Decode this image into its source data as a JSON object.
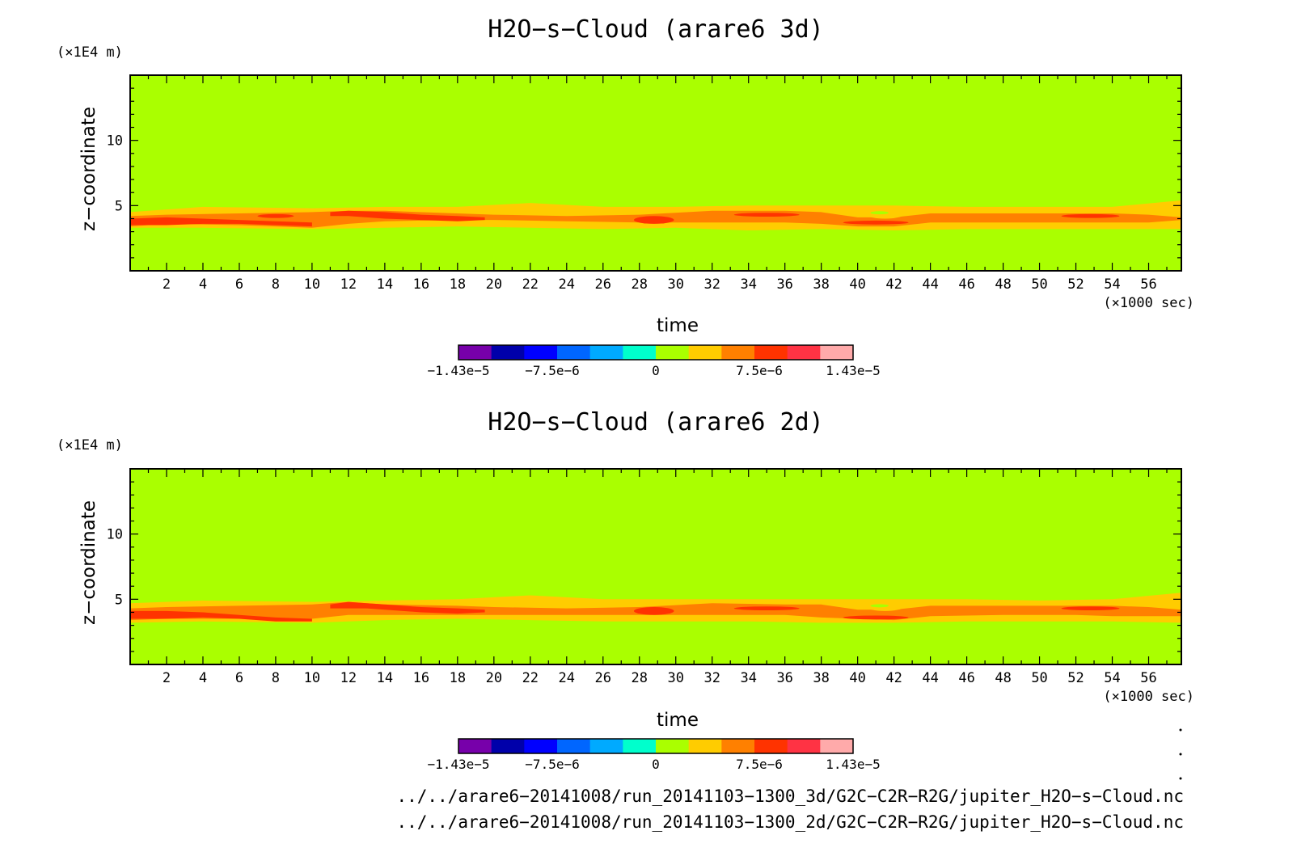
{
  "chart_data": [
    {
      "type": "heatmap",
      "title": "H2O−s−Cloud (arare6 3d)",
      "xlabel": "time",
      "ylabel": "z−coordinate",
      "x_unit": "(×1000 sec)",
      "y_unit": "(×1E4 m)",
      "xlim": [
        0,
        57.8
      ],
      "ylim": [
        0,
        15
      ],
      "xticks": [
        "2",
        "4",
        "6",
        "8",
        "10",
        "12",
        "14",
        "16",
        "18",
        "20",
        "22",
        "24",
        "26",
        "28",
        "30",
        "32",
        "34",
        "36",
        "38",
        "40",
        "42",
        "44",
        "46",
        "48",
        "50",
        "52",
        "54",
        "56"
      ],
      "yticks": [
        "5",
        "10"
      ],
      "background_level": 0,
      "bands": [
        {
          "level": 1,
          "color": "#ffcc00",
          "x": [
            0,
            4,
            10,
            14,
            18,
            22,
            26,
            30,
            34,
            38,
            42,
            46,
            50,
            54,
            57.8
          ],
          "bottom": [
            3.3,
            3.3,
            3.2,
            3.3,
            3.4,
            3.3,
            3.2,
            3.3,
            3.1,
            3.2,
            3.1,
            3.2,
            3.2,
            3.2,
            3.2
          ],
          "top": [
            4.5,
            4.9,
            4.8,
            4.9,
            4.9,
            5.2,
            4.9,
            4.9,
            5.0,
            5.0,
            5.0,
            4.9,
            4.9,
            4.9,
            5.4
          ]
        },
        {
          "level": 2,
          "color": "#ff8000",
          "x": [
            0,
            2,
            6,
            10,
            12,
            14,
            18,
            20,
            24,
            28,
            32,
            36,
            38,
            40,
            42,
            44,
            48,
            52,
            54,
            56,
            57.8
          ],
          "bottom": [
            3.4,
            3.6,
            3.5,
            3.3,
            3.6,
            3.8,
            3.9,
            3.9,
            3.8,
            3.7,
            3.7,
            3.7,
            3.6,
            3.4,
            3.4,
            3.7,
            3.7,
            3.7,
            3.7,
            3.7,
            3.9
          ],
          "top": [
            4.2,
            4.3,
            4.4,
            4.5,
            4.6,
            4.6,
            4.4,
            4.3,
            4.2,
            4.3,
            4.6,
            4.6,
            4.5,
            4.1,
            4.1,
            4.4,
            4.4,
            4.4,
            4.4,
            4.3,
            4.1
          ]
        },
        {
          "level": 3,
          "color": "#ff3300",
          "x": [
            0,
            2,
            4,
            6,
            8,
            10
          ],
          "bottom": [
            3.5,
            3.5,
            3.6,
            3.6,
            3.5,
            3.4
          ],
          "top": [
            4.0,
            4.1,
            4.0,
            3.9,
            3.8,
            3.7
          ]
        },
        {
          "level": 3,
          "color": "#ff3300",
          "x": [
            11,
            12,
            14,
            16,
            18,
            19.5
          ],
          "bottom": [
            4.2,
            4.2,
            4.0,
            3.9,
            3.8,
            3.9
          ],
          "top": [
            4.5,
            4.6,
            4.5,
            4.3,
            4.2,
            4.1
          ]
        }
      ],
      "spots": [
        {
          "level": 3,
          "color": "#ff3300",
          "x": 8,
          "y": 4.2,
          "rx": 1.0,
          "ry": 0.15
        },
        {
          "level": 3,
          "color": "#ff3300",
          "x": 28.8,
          "y": 3.9,
          "rx": 1.1,
          "ry": 0.3
        },
        {
          "level": 3,
          "color": "#ff3300",
          "x": 35.0,
          "y": 4.3,
          "rx": 1.8,
          "ry": 0.15
        },
        {
          "level": 3,
          "color": "#ff3300",
          "x": 41.0,
          "y": 3.7,
          "rx": 1.8,
          "ry": 0.15
        },
        {
          "level": 3,
          "color": "#ff3300",
          "x": 52.8,
          "y": 4.2,
          "rx": 1.6,
          "ry": 0.15
        },
        {
          "level": 1,
          "color": "#ffcc00",
          "x": 41.5,
          "y": 4.3,
          "rx": 1.0,
          "ry": 0.3
        },
        {
          "level": 0,
          "color": "#aaff00",
          "x": 41.2,
          "y": 4.45,
          "rx": 0.5,
          "ry": 0.12
        }
      ]
    },
    {
      "type": "heatmap",
      "title": "H2O−s−Cloud (arare6 2d)",
      "xlabel": "time",
      "ylabel": "z−coordinate",
      "x_unit": "(×1000 sec)",
      "y_unit": "(×1E4 m)",
      "xlim": [
        0,
        57.8
      ],
      "ylim": [
        0,
        15
      ],
      "xticks": [
        "2",
        "4",
        "6",
        "8",
        "10",
        "12",
        "14",
        "16",
        "18",
        "20",
        "22",
        "24",
        "26",
        "28",
        "30",
        "32",
        "34",
        "36",
        "38",
        "40",
        "42",
        "44",
        "46",
        "48",
        "50",
        "52",
        "54",
        "56"
      ],
      "yticks": [
        "5",
        "10"
      ],
      "background_level": 0,
      "bands": [
        {
          "level": 1,
          "color": "#ffcc00",
          "x": [
            0,
            4,
            10,
            14,
            18,
            22,
            26,
            30,
            34,
            38,
            42,
            46,
            50,
            54,
            57.8
          ],
          "bottom": [
            3.2,
            3.3,
            3.2,
            3.4,
            3.5,
            3.4,
            3.3,
            3.3,
            3.3,
            3.2,
            3.2,
            3.3,
            3.3,
            3.3,
            3.2
          ],
          "top": [
            4.7,
            4.9,
            4.8,
            4.9,
            5.0,
            5.3,
            5.0,
            5.0,
            5.0,
            5.0,
            5.0,
            5.0,
            4.9,
            5.0,
            5.5
          ]
        },
        {
          "level": 2,
          "color": "#ff8000",
          "x": [
            0,
            2,
            6,
            10,
            12,
            14,
            18,
            20,
            24,
            28,
            32,
            36,
            38,
            40,
            42,
            44,
            48,
            52,
            54,
            56,
            57.8
          ],
          "bottom": [
            3.4,
            3.5,
            3.5,
            3.5,
            3.8,
            3.8,
            3.8,
            3.8,
            3.8,
            3.8,
            3.8,
            3.8,
            3.6,
            3.5,
            3.4,
            3.7,
            3.8,
            3.8,
            3.7,
            3.7,
            3.7
          ],
          "top": [
            4.3,
            4.4,
            4.5,
            4.6,
            4.8,
            4.6,
            4.5,
            4.4,
            4.3,
            4.4,
            4.7,
            4.6,
            4.6,
            4.2,
            4.2,
            4.5,
            4.5,
            4.5,
            4.5,
            4.4,
            4.2
          ]
        },
        {
          "level": 3,
          "color": "#ff3300",
          "x": [
            0,
            2,
            4,
            6,
            8,
            10
          ],
          "bottom": [
            3.5,
            3.5,
            3.6,
            3.5,
            3.3,
            3.3
          ],
          "top": [
            4.1,
            4.1,
            4.0,
            3.8,
            3.6,
            3.5
          ]
        },
        {
          "level": 3,
          "color": "#ff3300",
          "x": [
            11,
            12,
            13,
            14,
            16,
            18,
            19.5
          ],
          "bottom": [
            4.3,
            4.3,
            4.3,
            4.2,
            4.0,
            3.9,
            4.0
          ],
          "top": [
            4.6,
            4.8,
            4.7,
            4.6,
            4.4,
            4.3,
            4.2
          ]
        }
      ],
      "spots": [
        {
          "level": 3,
          "color": "#ff3300",
          "x": 28.8,
          "y": 4.1,
          "rx": 1.1,
          "ry": 0.3
        },
        {
          "level": 3,
          "color": "#ff3300",
          "x": 35.0,
          "y": 4.3,
          "rx": 1.8,
          "ry": 0.15
        },
        {
          "level": 3,
          "color": "#ff3300",
          "x": 41.0,
          "y": 3.6,
          "rx": 1.8,
          "ry": 0.15
        },
        {
          "level": 3,
          "color": "#ff3300",
          "x": 52.8,
          "y": 4.3,
          "rx": 1.6,
          "ry": 0.15
        },
        {
          "level": 1,
          "color": "#ffcc00",
          "x": 41.5,
          "y": 4.4,
          "rx": 1.0,
          "ry": 0.3
        },
        {
          "level": 0,
          "color": "#aaff00",
          "x": 41.2,
          "y": 4.5,
          "rx": 0.5,
          "ry": 0.12
        }
      ]
    }
  ],
  "colorbar": {
    "colors": [
      "#7700aa",
      "#0000aa",
      "#0000ff",
      "#0066ff",
      "#00aaff",
      "#00ffcc",
      "#aaff00",
      "#ffcc00",
      "#ff8000",
      "#ff3300",
      "#ff3344",
      "#ffaaaa"
    ],
    "level_colors": [
      "#aaff00",
      "#ffcc00",
      "#ff8000",
      "#ff3300"
    ],
    "labels": [
      "−1.43e−5",
      "−7.5e−6",
      "0",
      "7.5e−6",
      "1.43e−5"
    ],
    "label_values": [
      -1.43e-05,
      -7.5e-06,
      0,
      7.5e-06,
      1.43e-05
    ],
    "range": [
      -1.43e-05,
      1.43e-05
    ]
  },
  "file_paths": [
    "../../arare6−20141008/run_20141103−1300_3d/G2C−C2R−R2G/jupiter_H2O−s−Cloud.nc",
    "../../arare6−20141008/run_20141103−1300_2d/G2C−C2R−R2G/jupiter_H2O−s−Cloud.nc"
  ]
}
